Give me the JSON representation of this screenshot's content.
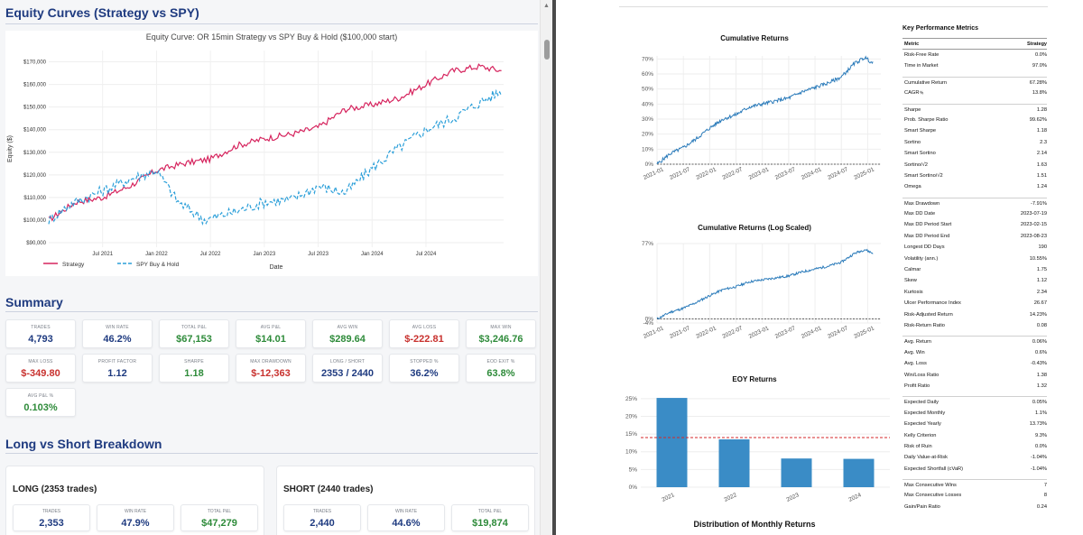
{
  "left": {
    "equity_section_title": "Equity Curves (Strategy vs SPY)",
    "summary_title": "Summary",
    "long_short_title": "Long vs Short Breakdown"
  },
  "chart_data": [
    {
      "id": "equity",
      "type": "line",
      "title": "Equity Curve: OR 15min Strategy vs SPY Buy & Hold ($100,000 start)",
      "xlabel": "Date",
      "ylabel": "Equity ($)",
      "ylim": [
        88000,
        175000
      ],
      "yticks": [
        90000,
        100000,
        110000,
        120000,
        130000,
        140000,
        150000,
        160000,
        170000
      ],
      "ytick_labels": [
        "$90,000",
        "$100,000",
        "$110,000",
        "$120,000",
        "$130,000",
        "$140,000",
        "$150,000",
        "$160,000",
        "$170,000"
      ],
      "xlim": [
        2021.0,
        2025.22
      ],
      "xticks": [
        2021.5,
        2022.0,
        2022.5,
        2023.0,
        2023.5,
        2024.0,
        2024.5
      ],
      "xtick_labels": [
        "Jul 2021",
        "Jan 2022",
        "Jul 2022",
        "Jan 2023",
        "Jul 2023",
        "Jan 2024",
        "Jul 2024"
      ],
      "legend": [
        "Strategy",
        "SPY Buy & Hold"
      ],
      "series": [
        {
          "name": "Strategy",
          "color": "#d6245e",
          "dash": false,
          "x": [
            2021.0,
            2021.25,
            2021.5,
            2021.75,
            2022.0,
            2022.25,
            2022.5,
            2022.75,
            2023.0,
            2023.25,
            2023.5,
            2023.75,
            2024.0,
            2024.25,
            2024.5,
            2024.75,
            2025.0,
            2025.2
          ],
          "y": [
            100000,
            108000,
            110000,
            115000,
            122000,
            125000,
            127000,
            133000,
            136000,
            138000,
            141000,
            149000,
            151000,
            154000,
            160000,
            166000,
            168000,
            166000
          ]
        },
        {
          "name": "SPY Buy & Hold",
          "color": "#2b9fd9",
          "dash": true,
          "x": [
            2021.0,
            2021.2,
            2021.45,
            2021.75,
            2022.0,
            2022.2,
            2022.45,
            2022.75,
            2023.0,
            2023.25,
            2023.5,
            2023.75,
            2024.0,
            2024.25,
            2024.5,
            2024.75,
            2025.0,
            2025.2
          ],
          "y": [
            100000,
            107000,
            112000,
            118000,
            122000,
            108000,
            100000,
            104000,
            108000,
            109000,
            115000,
            112000,
            123000,
            132000,
            140000,
            145000,
            152000,
            157000
          ]
        }
      ]
    },
    {
      "id": "cumret",
      "type": "line",
      "title": "Cumulative Returns",
      "ylim": [
        0,
        72
      ],
      "yticks": [
        0,
        10,
        20,
        30,
        40,
        50,
        60,
        70
      ],
      "ytick_labels": [
        "0%",
        "10%",
        "20%",
        "30%",
        "40%",
        "50%",
        "60%",
        "70%"
      ],
      "xlim": [
        2021.0,
        2025.25
      ],
      "xticks": [
        2021.0,
        2021.5,
        2022.0,
        2022.5,
        2023.0,
        2023.5,
        2024.0,
        2024.5,
        2025.0
      ],
      "xtick_labels": [
        "2021-01",
        "2021-07",
        "2022-01",
        "2022-07",
        "2023-01",
        "2023-07",
        "2024-01",
        "2024-07",
        "2025-01"
      ],
      "series": [
        {
          "name": "Strategy",
          "color": "#2b7bba",
          "x": [
            2021.0,
            2021.25,
            2021.5,
            2021.75,
            2022.0,
            2022.25,
            2022.5,
            2022.75,
            2023.0,
            2023.25,
            2023.5,
            2023.75,
            2024.0,
            2024.25,
            2024.5,
            2024.75,
            2024.95,
            2025.1
          ],
          "y": [
            0,
            7,
            11,
            17,
            24,
            30,
            33,
            38,
            40,
            42,
            44,
            48,
            51,
            54,
            58,
            67,
            71,
            67
          ]
        }
      ]
    },
    {
      "id": "logret",
      "type": "line",
      "title": "Cumulative Returns (Log Scaled)",
      "ylim": [
        -4,
        77
      ],
      "yticks": [
        -4,
        0,
        77
      ],
      "ytick_labels": [
        "-4%",
        "0%",
        "77%"
      ],
      "xlim": [
        2021.0,
        2025.25
      ],
      "xticks": [
        2021.0,
        2021.5,
        2022.0,
        2022.5,
        2023.0,
        2023.5,
        2024.0,
        2024.5,
        2025.0
      ],
      "xtick_labels": [
        "2021-01",
        "2021-07",
        "2022-01",
        "2022-07",
        "2023-01",
        "2023-07",
        "2024-01",
        "2024-07",
        "2025-01"
      ],
      "series": [
        {
          "name": "Strategy",
          "color": "#2b7bba",
          "x": [
            2021.0,
            2021.25,
            2021.5,
            2021.75,
            2022.0,
            2022.25,
            2022.5,
            2022.75,
            2023.0,
            2023.25,
            2023.5,
            2023.75,
            2024.0,
            2024.25,
            2024.5,
            2024.75,
            2024.95,
            2025.1
          ],
          "y": [
            0,
            7,
            11,
            17,
            24,
            30,
            33,
            38,
            40,
            42,
            44,
            48,
            51,
            54,
            58,
            67,
            71,
            67
          ]
        }
      ]
    },
    {
      "id": "eoy",
      "type": "bar",
      "title": "EOY Returns",
      "categories": [
        "2021",
        "2022",
        "2023",
        "2024"
      ],
      "values": [
        25.2,
        13.5,
        8.1,
        8.0
      ],
      "mean_line": 14.0,
      "ylim": [
        0,
        27
      ],
      "yticks": [
        0,
        5,
        10,
        15,
        20,
        25
      ],
      "ytick_labels": [
        "0%",
        "5%",
        "10%",
        "15%",
        "20%",
        "25%"
      ],
      "color": "#3a8cc6"
    }
  ],
  "summary_stats": [
    {
      "label": "TRADES",
      "value": "4,793",
      "tone": "navy"
    },
    {
      "label": "WIN RATE",
      "value": "46.2%",
      "tone": "navy"
    },
    {
      "label": "TOTAL P&L",
      "value": "$67,153",
      "tone": "green"
    },
    {
      "label": "AVG P&L",
      "value": "$14.01",
      "tone": "green"
    },
    {
      "label": "AVG WIN",
      "value": "$289.64",
      "tone": "green"
    },
    {
      "label": "AVG LOSS",
      "value": "$-222.81",
      "tone": "red"
    },
    {
      "label": "MAX WIN",
      "value": "$3,246.76",
      "tone": "green"
    },
    {
      "label": "MAX LOSS",
      "value": "$-349.80",
      "tone": "red"
    },
    {
      "label": "PROFIT FACTOR",
      "value": "1.12",
      "tone": "navy"
    },
    {
      "label": "SHARPE",
      "value": "1.18",
      "tone": "green"
    },
    {
      "label": "MAX DRAWDOWN",
      "value": "$-12,363",
      "tone": "red"
    },
    {
      "label": "LONG / SHORT",
      "value": "2353 / 2440",
      "tone": "navy"
    },
    {
      "label": "STOPPED %",
      "value": "36.2%",
      "tone": "navy"
    },
    {
      "label": "EOD EXIT %",
      "value": "63.8%",
      "tone": "green"
    },
    {
      "label": "AVG P&L %",
      "value": "0.103%",
      "tone": "green"
    }
  ],
  "long": {
    "title": "LONG (2353 trades)",
    "stats": [
      {
        "label": "TRADES",
        "value": "2,353",
        "tone": "navy"
      },
      {
        "label": "WIN RATE",
        "value": "47.9%",
        "tone": "navy"
      },
      {
        "label": "TOTAL P&L",
        "value": "$47,279",
        "tone": "green"
      }
    ]
  },
  "short": {
    "title": "SHORT (2440 trades)",
    "stats": [
      {
        "label": "TRADES",
        "value": "2,440",
        "tone": "navy"
      },
      {
        "label": "WIN RATE",
        "value": "44.6%",
        "tone": "navy"
      },
      {
        "label": "TOTAL P&L",
        "value": "$19,874",
        "tone": "green"
      }
    ]
  },
  "right": {
    "monthly_title": "Distribution of Monthly Returns"
  },
  "metrics": {
    "title": "Key Performance Metrics",
    "col_metric": "Metric",
    "col_strategy": "Strategy",
    "groups": [
      [
        [
          "Risk-Free Rate",
          "0.0%"
        ],
        [
          "Time in Market",
          "97.0%"
        ]
      ],
      [
        [
          "Cumulative Return",
          "67.28%"
        ],
        [
          "CAGR﹪",
          "13.8%"
        ]
      ],
      [
        [
          "Sharpe",
          "1.28"
        ],
        [
          "Prob. Sharpe Ratio",
          "99.62%"
        ],
        [
          "Smart Sharpe",
          "1.18"
        ],
        [
          "Sortino",
          "2.3"
        ],
        [
          "Smart Sortino",
          "2.14"
        ],
        [
          "Sortino/√2",
          "1.63"
        ],
        [
          "Smart Sortino/√2",
          "1.51"
        ],
        [
          "Omega",
          "1.24"
        ]
      ],
      [
        [
          "Max Drawdown",
          "-7.91%"
        ],
        [
          "Max DD Date",
          "2023-07-19"
        ],
        [
          "Max DD Period Start",
          "2023-02-15"
        ],
        [
          "Max DD Period End",
          "2023-08-23"
        ],
        [
          "Longest DD Days",
          "190"
        ],
        [
          "Volatility (ann.)",
          "10.55%"
        ],
        [
          "Calmar",
          "1.75"
        ],
        [
          "Skew",
          "1.12"
        ],
        [
          "Kurtosis",
          "2.34"
        ],
        [
          "Ulcer Performance Index",
          "26.67"
        ],
        [
          "Risk-Adjusted Return",
          "14.23%"
        ],
        [
          "Risk-Return Ratio",
          "0.08"
        ]
      ],
      [
        [
          "Avg. Return",
          "0.06%"
        ],
        [
          "Avg. Win",
          "0.6%"
        ],
        [
          "Avg. Loss",
          "-0.43%"
        ],
        [
          "Win/Loss Ratio",
          "1.38"
        ],
        [
          "Profit Ratio",
          "1.32"
        ]
      ],
      [
        [
          "Expected Daily",
          "0.05%"
        ],
        [
          "Expected Monthly",
          "1.1%"
        ],
        [
          "Expected Yearly",
          "13.73%"
        ],
        [
          "Kelly Criterion",
          "9.3%"
        ],
        [
          "Risk of Ruin",
          "0.0%"
        ],
        [
          "Daily Value-at-Risk",
          "-1.04%"
        ],
        [
          "Expected Shortfall (cVaR)",
          "-1.04%"
        ]
      ],
      [
        [
          "Max Consecutive Wins",
          "7"
        ],
        [
          "Max Consecutive Losses",
          "8"
        ],
        [
          "Gain/Pain Ratio",
          "0.24"
        ]
      ]
    ]
  }
}
